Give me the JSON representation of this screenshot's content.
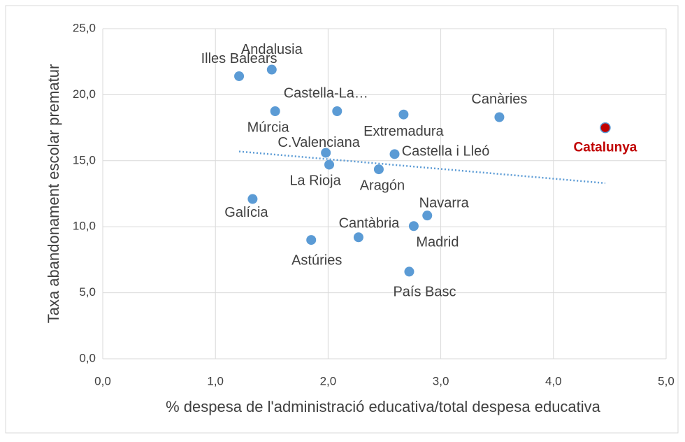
{
  "chart_data": {
    "type": "scatter",
    "xlabel": "% despesa de l'administració educativa/total despesa educativa",
    "ylabel": "Taxa abandonament escolar prematur",
    "xlim": [
      0,
      5
    ],
    "ylim": [
      0,
      25
    ],
    "xticks": [
      {
        "value": 0,
        "label": "0,0"
      },
      {
        "value": 1,
        "label": "1,0"
      },
      {
        "value": 2,
        "label": "2,0"
      },
      {
        "value": 3,
        "label": "3,0"
      },
      {
        "value": 4,
        "label": "4,0"
      },
      {
        "value": 5,
        "label": "5,0"
      }
    ],
    "yticks": [
      {
        "value": 0,
        "label": "0,0"
      },
      {
        "value": 5,
        "label": "5,0"
      },
      {
        "value": 10,
        "label": "10,0"
      },
      {
        "value": 15,
        "label": "15,0"
      },
      {
        "value": 20,
        "label": "20,0"
      },
      {
        "value": 25,
        "label": "25,0"
      }
    ],
    "grid": true,
    "labels": [
      "Illes Balears",
      "Andalusia",
      "Múrcia",
      "Castella-La…",
      "Extremadura",
      "Canàries",
      "Catalunya",
      "C.Valenciana",
      "Castella i Lleó",
      "La Rioja",
      "Aragón",
      "Galícia",
      "Navarra",
      "Madrid",
      "Cantàbria",
      "Astúries",
      "País Basc"
    ],
    "x": [
      1.21,
      1.5,
      1.53,
      2.08,
      2.67,
      3.52,
      4.46,
      1.98,
      2.59,
      2.01,
      2.45,
      1.33,
      2.88,
      2.76,
      2.27,
      1.85,
      2.72
    ],
    "values": [
      21.4,
      21.9,
      18.75,
      18.75,
      18.5,
      18.3,
      17.5,
      15.6,
      15.5,
      14.7,
      14.35,
      12.1,
      10.85,
      10.05,
      9.2,
      9.0,
      6.6
    ],
    "point_colors": [
      "#5b9bd5",
      "#5b9bd5",
      "#5b9bd5",
      "#5b9bd5",
      "#5b9bd5",
      "#5b9bd5",
      "#c00000",
      "#5b9bd5",
      "#5b9bd5",
      "#5b9bd5",
      "#5b9bd5",
      "#5b9bd5",
      "#5b9bd5",
      "#5b9bd5",
      "#5b9bd5",
      "#5b9bd5",
      "#5b9bd5"
    ],
    "label_colors": [
      "#404040",
      "#404040",
      "#404040",
      "#404040",
      "#404040",
      "#404040",
      "#c00000",
      "#404040",
      "#404040",
      "#404040",
      "#404040",
      "#404040",
      "#404040",
      "#404040",
      "#404040",
      "#404040",
      "#404040"
    ],
    "trendline": {
      "color": "#5b9bd5",
      "x": [
        1.21,
        4.46
      ],
      "values": [
        15.7,
        13.3
      ]
    }
  }
}
